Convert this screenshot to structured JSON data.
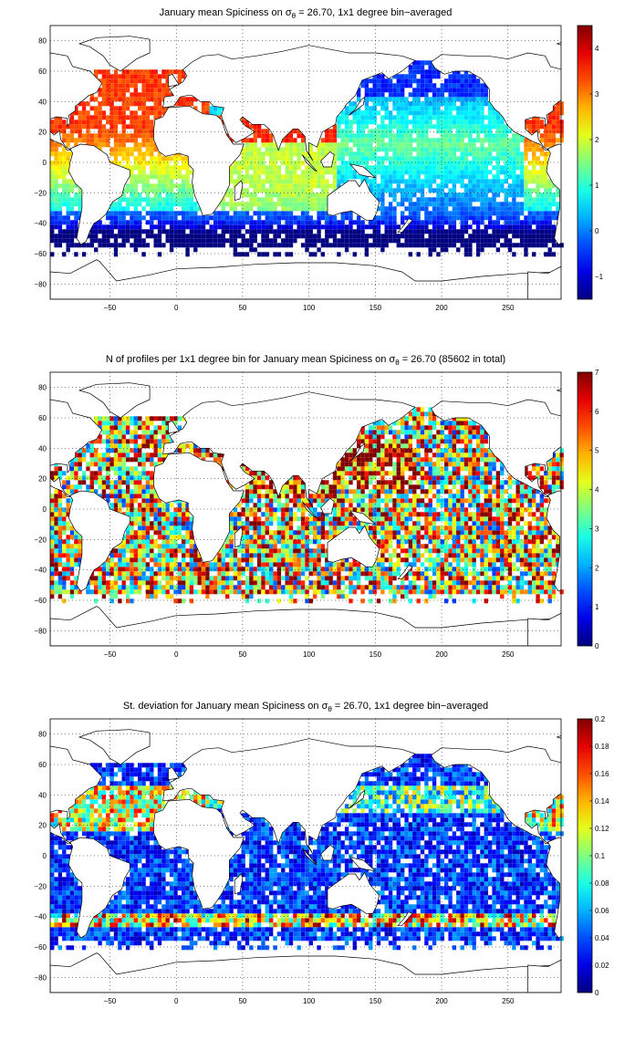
{
  "panels": [
    {
      "title_before": "January mean Spiciness on σ",
      "title_sub": "θ",
      "title_after": " = 26.70, 1x1 degree bin−averaged",
      "xticks": [
        "−50",
        "0",
        "50",
        "100",
        "150",
        "200",
        "250"
      ],
      "yticks": [
        "80",
        "60",
        "40",
        "20",
        "0",
        "−20",
        "−40",
        "−60",
        "−80"
      ],
      "colorbar_ticks": [
        "4",
        "3",
        "2",
        "1",
        "0",
        "−1"
      ],
      "colorbar_range": [
        -1.5,
        4.5
      ],
      "colormap": "jet",
      "field": "mean spiciness"
    },
    {
      "title_before": "N of profiles per 1x1 degree bin for January mean Spiciness on σ",
      "title_sub": "θ",
      "title_after": " = 26.70 (85602 in total)",
      "xticks": [
        "−50",
        "0",
        "50",
        "100",
        "150",
        "200",
        "250"
      ],
      "yticks": [
        "80",
        "60",
        "40",
        "20",
        "0",
        "−20",
        "−40",
        "−60",
        "−80"
      ],
      "colorbar_ticks": [
        "7",
        "6",
        "5",
        "4",
        "3",
        "2",
        "1",
        "0"
      ],
      "colorbar_range": [
        0,
        7
      ],
      "colormap": "jet",
      "field": "profile count"
    },
    {
      "title_before": "St. deviation for January mean Spiciness on σ",
      "title_sub": "θ",
      "title_after": " = 26.70, 1x1 degree bin−averaged",
      "xticks": [
        "−50",
        "0",
        "50",
        "100",
        "150",
        "200",
        "250"
      ],
      "yticks": [
        "80",
        "60",
        "40",
        "20",
        "0",
        "−20",
        "−40",
        "−60",
        "−80"
      ],
      "colorbar_ticks": [
        "0.2",
        "0.18",
        "0.16",
        "0.14",
        "0.12",
        "0.1",
        "0.08",
        "0.06",
        "0.04",
        "0.02",
        "0"
      ],
      "colorbar_range": [
        0,
        0.2
      ],
      "colormap": "jet",
      "field": "standard deviation"
    }
  ]
}
